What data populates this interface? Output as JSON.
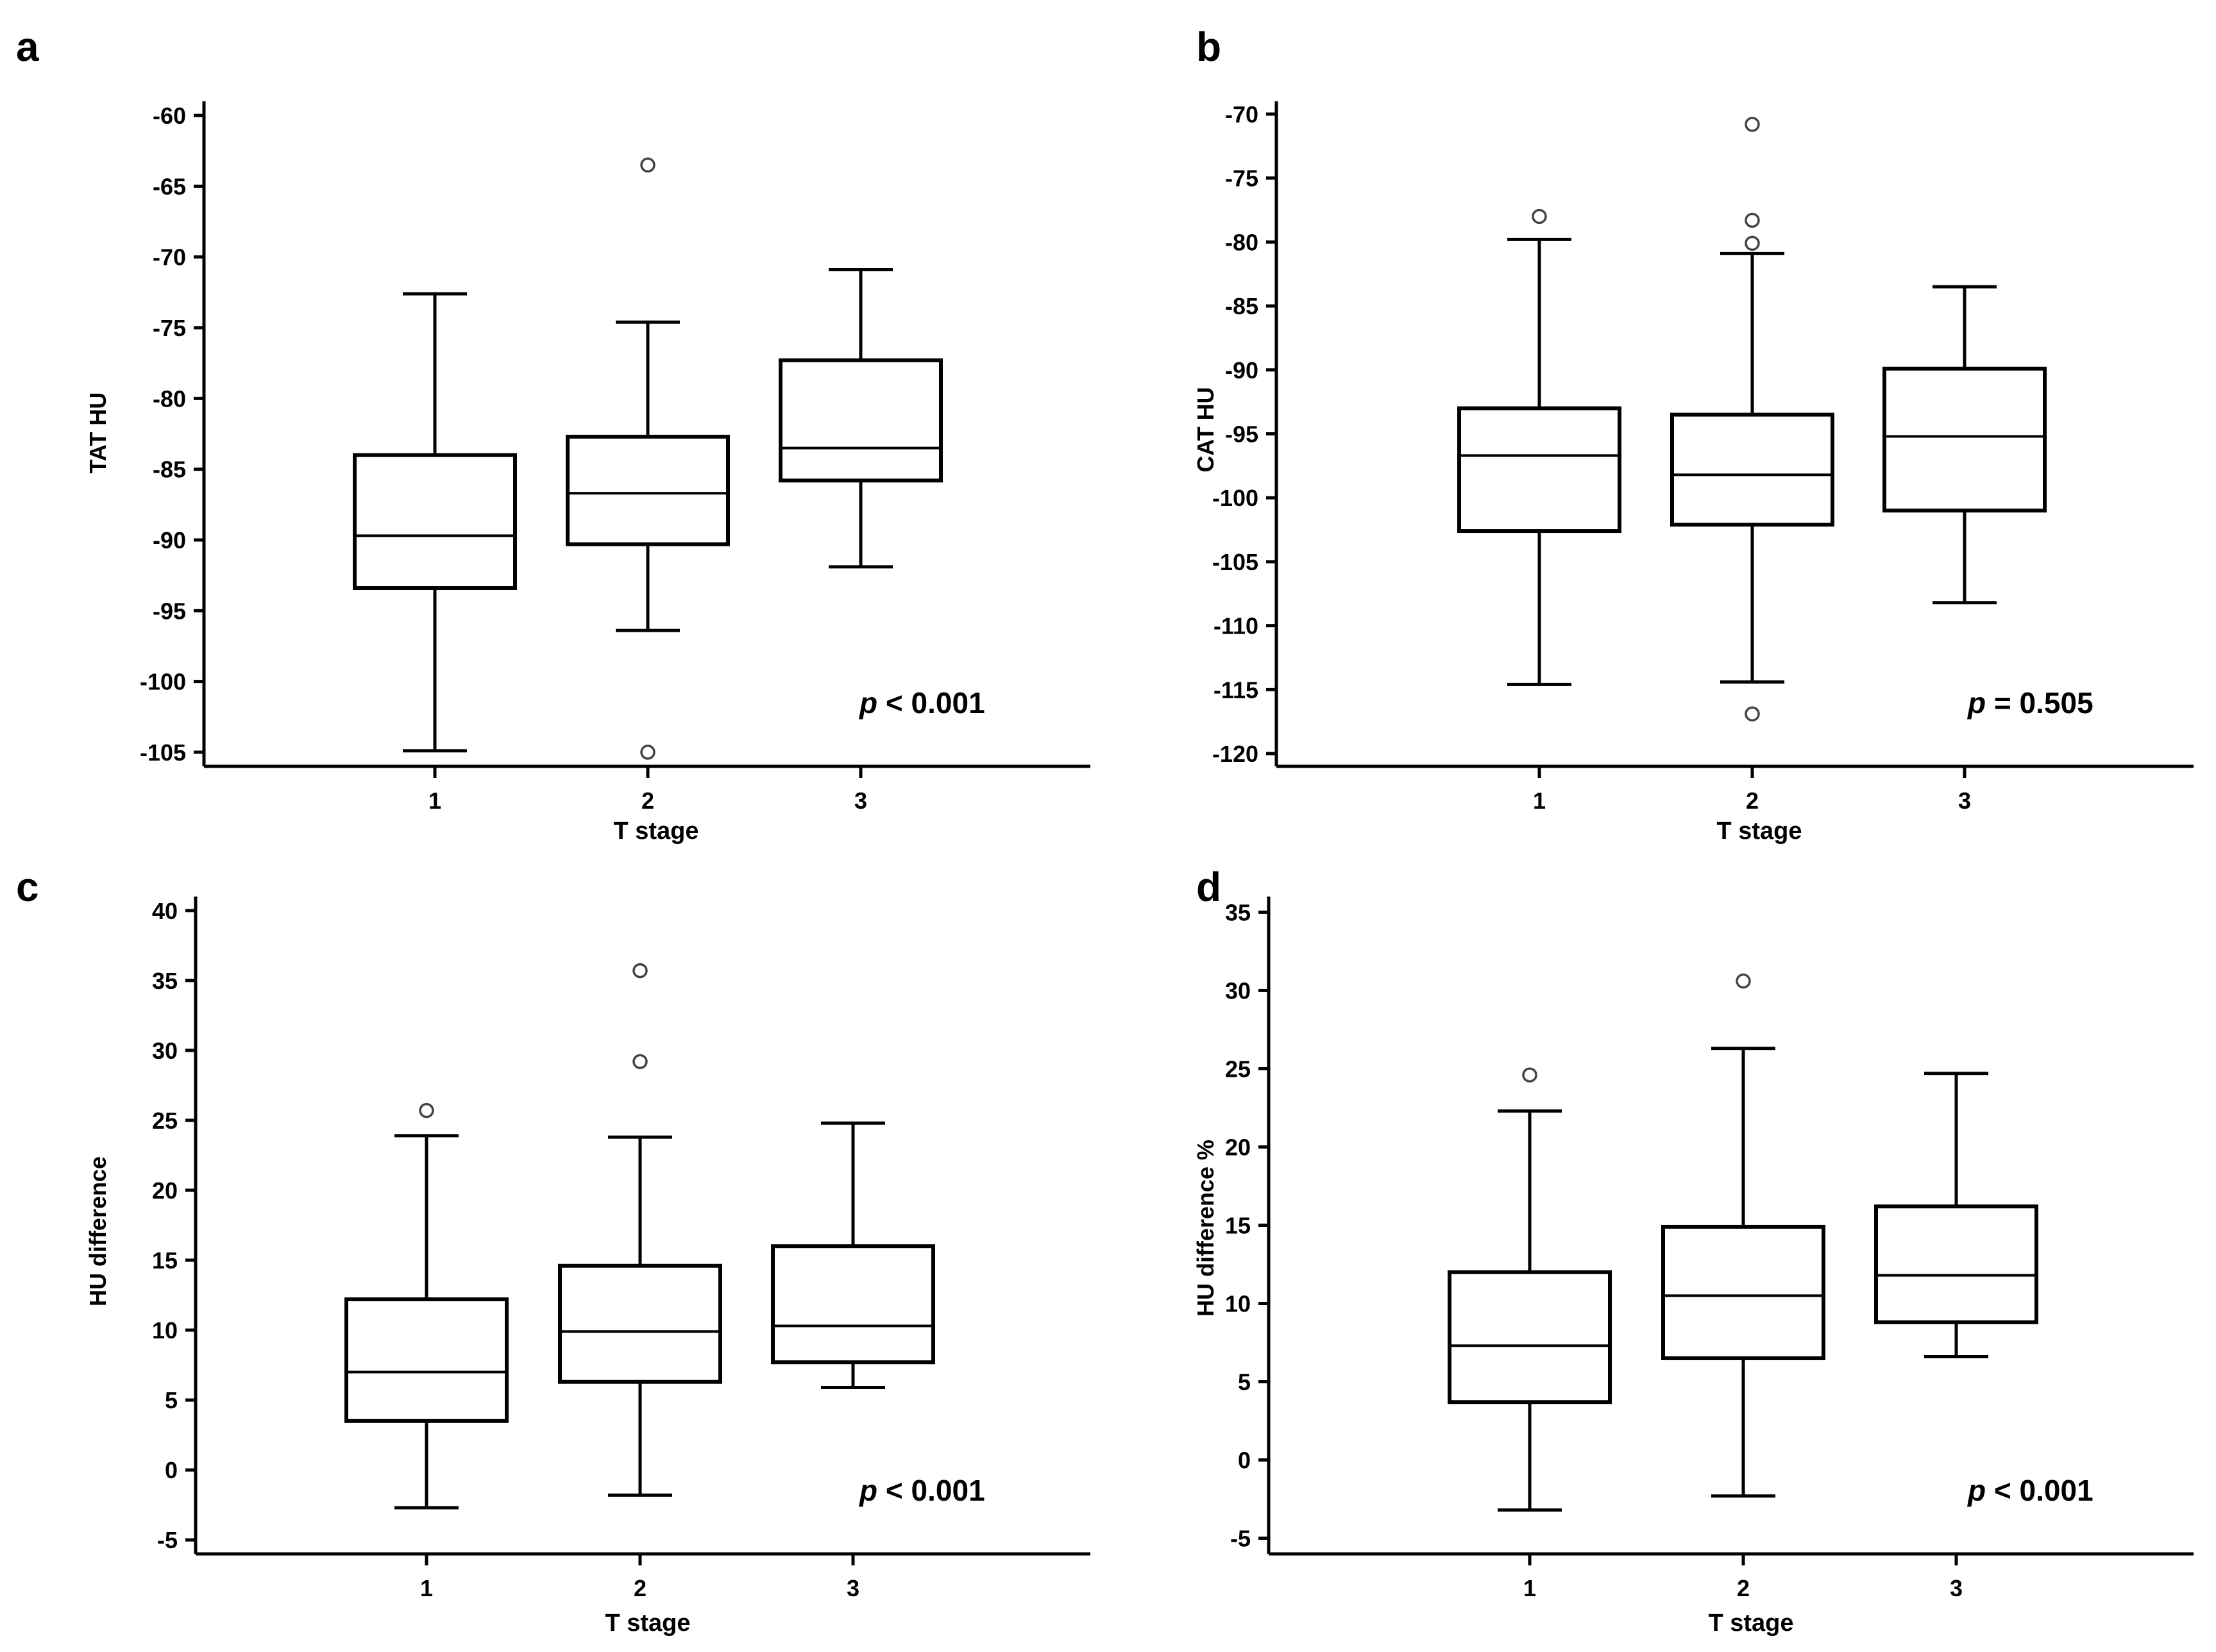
{
  "chart_data": [
    {
      "type": "boxplot",
      "panel_label": "a",
      "ylabel": "TAT HU",
      "xlabel": "T stage",
      "categories": [
        "1",
        "2",
        "3"
      ],
      "ylim": [
        -106,
        -59
      ],
      "yticks": [
        -105,
        -100,
        -95,
        -90,
        -85,
        -80,
        -75,
        -70,
        -65,
        -60
      ],
      "annotation": {
        "italic": "p",
        "text": " < 0.001"
      },
      "boxes": [
        {
          "category": "1",
          "whisker_low": -104.9,
          "q1": -93.4,
          "median": -89.7,
          "q3": -84.0,
          "whisker_high": -72.6,
          "outliers": []
        },
        {
          "category": "2",
          "whisker_low": -96.4,
          "q1": -90.3,
          "median": -86.7,
          "q3": -82.7,
          "whisker_high": -74.6,
          "outliers": [
            -63.5,
            -105.0
          ]
        },
        {
          "category": "3",
          "whisker_low": -91.9,
          "q1": -85.8,
          "median": -83.5,
          "q3": -77.3,
          "whisker_high": -70.9,
          "outliers": []
        }
      ]
    },
    {
      "type": "boxplot",
      "panel_label": "b",
      "ylabel": "CAT HU",
      "xlabel": "T stage",
      "categories": [
        "1",
        "2",
        "3"
      ],
      "ylim": [
        -121,
        -69
      ],
      "yticks": [
        -120,
        -115,
        -110,
        -105,
        -100,
        -95,
        -90,
        -85,
        -80,
        -75,
        -70
      ],
      "annotation": {
        "italic": "p",
        "text": " = 0.505"
      },
      "boxes": [
        {
          "category": "1",
          "whisker_low": -114.6,
          "q1": -102.6,
          "median": -96.7,
          "q3": -93.0,
          "whisker_high": -79.8,
          "outliers": [
            -78.0
          ]
        },
        {
          "category": "2",
          "whisker_low": -114.4,
          "q1": -102.1,
          "median": -98.2,
          "q3": -93.5,
          "whisker_high": -80.9,
          "outliers": [
            -70.8,
            -78.3,
            -80.1,
            -116.9
          ]
        },
        {
          "category": "3",
          "whisker_low": -108.2,
          "q1": -101.0,
          "median": -95.2,
          "q3": -89.9,
          "whisker_high": -83.5,
          "outliers": []
        }
      ]
    },
    {
      "type": "boxplot",
      "panel_label": "c",
      "ylabel": "HU difference",
      "xlabel": "T stage",
      "categories": [
        "1",
        "2",
        "3"
      ],
      "ylim": [
        -6,
        41
      ],
      "yticks": [
        -5,
        0,
        5,
        10,
        15,
        20,
        25,
        30,
        35,
        40
      ],
      "annotation": {
        "italic": "p",
        "text": " < 0.001"
      },
      "boxes": [
        {
          "category": "1",
          "whisker_low": -2.7,
          "q1": 3.5,
          "median": 7.0,
          "q3": 12.2,
          "whisker_high": 23.9,
          "outliers": [
            25.7
          ]
        },
        {
          "category": "2",
          "whisker_low": -1.8,
          "q1": 6.3,
          "median": 9.9,
          "q3": 14.6,
          "whisker_high": 23.8,
          "outliers": [
            35.7,
            29.2
          ]
        },
        {
          "category": "3",
          "whisker_low": 5.9,
          "q1": 7.7,
          "median": 10.3,
          "q3": 16.0,
          "whisker_high": 24.8,
          "outliers": []
        }
      ]
    },
    {
      "type": "boxplot",
      "panel_label": "d",
      "ylabel": "HU difference %",
      "xlabel": "T stage",
      "categories": [
        "1",
        "2",
        "3"
      ],
      "ylim": [
        -6,
        36
      ],
      "yticks": [
        -5,
        0,
        5,
        10,
        15,
        20,
        25,
        30,
        35
      ],
      "annotation": {
        "italic": "p",
        "text": " < 0.001"
      },
      "boxes": [
        {
          "category": "1",
          "whisker_low": -3.2,
          "q1": 3.7,
          "median": 7.3,
          "q3": 12.0,
          "whisker_high": 22.3,
          "outliers": [
            24.6
          ]
        },
        {
          "category": "2",
          "whisker_low": -2.3,
          "q1": 6.5,
          "median": 10.5,
          "q3": 14.9,
          "whisker_high": 26.3,
          "outliers": [
            30.6
          ]
        },
        {
          "category": "3",
          "whisker_low": 6.6,
          "q1": 8.8,
          "median": 11.8,
          "q3": 16.2,
          "whisker_high": 24.7,
          "outliers": []
        }
      ]
    }
  ]
}
